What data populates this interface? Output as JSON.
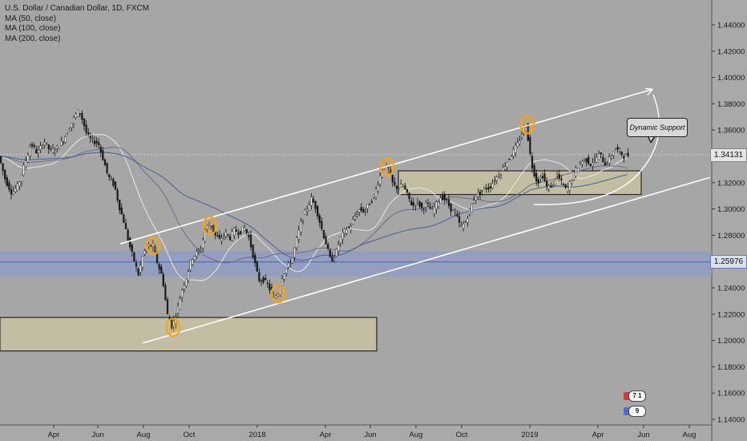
{
  "chart_data": {
    "type": "candlestick",
    "title": "U.S. Dollar / Canadian Dollar, 1D, FXCM",
    "indicators": [
      "MA (50, close)",
      "MA (100, close)",
      "MA (200, close)"
    ],
    "y_ticks": [
      "1.44000",
      "1.42000",
      "1.40000",
      "1.38000",
      "1.36000",
      "1.34000",
      "1.32000",
      "1.30000",
      "1.28000",
      "1.26000",
      "1.24000",
      "1.22000",
      "1.20000",
      "1.18000",
      "1.16000",
      "1.14000"
    ],
    "ylim": [
      1.139,
      1.455
    ],
    "x_ticks": [
      "Apr",
      "Jun",
      "Aug",
      "Oct",
      "2018",
      "Apr",
      "Jun",
      "Aug",
      "Oct",
      "2019",
      "Apr",
      "Jun",
      "Aug"
    ],
    "current_price": "1.34131",
    "horizontal_line_price": "1.25976",
    "price_path": [
      [
        0,
        1.34
      ],
      [
        8,
        1.322
      ],
      [
        16,
        1.312
      ],
      [
        24,
        1.318
      ],
      [
        32,
        1.334
      ],
      [
        40,
        1.35
      ],
      [
        48,
        1.342
      ],
      [
        56,
        1.352
      ],
      [
        64,
        1.344
      ],
      [
        72,
        1.346
      ],
      [
        80,
        1.352
      ],
      [
        88,
        1.362
      ],
      [
        96,
        1.372
      ],
      [
        100,
        1.375
      ],
      [
        104,
        1.368
      ],
      [
        110,
        1.356
      ],
      [
        116,
        1.352
      ],
      [
        124,
        1.35
      ],
      [
        130,
        1.338
      ],
      [
        136,
        1.325
      ],
      [
        144,
        1.318
      ],
      [
        150,
        1.302
      ],
      [
        156,
        1.29
      ],
      [
        162,
        1.274
      ],
      [
        168,
        1.262
      ],
      [
        174,
        1.25
      ],
      [
        180,
        1.266
      ],
      [
        186,
        1.272
      ],
      [
        192,
        1.272
      ],
      [
        198,
        1.258
      ],
      [
        204,
        1.248
      ],
      [
        210,
        1.22
      ],
      [
        216,
        1.21
      ],
      [
        222,
        1.222
      ],
      [
        228,
        1.238
      ],
      [
        234,
        1.248
      ],
      [
        240,
        1.262
      ],
      [
        246,
        1.266
      ],
      [
        252,
        1.27
      ],
      [
        258,
        1.286
      ],
      [
        264,
        1.288
      ],
      [
        270,
        1.28
      ],
      [
        276,
        1.276
      ],
      [
        282,
        1.282
      ],
      [
        288,
        1.278
      ],
      [
        294,
        1.284
      ],
      [
        300,
        1.282
      ],
      [
        306,
        1.286
      ],
      [
        312,
        1.278
      ],
      [
        318,
        1.262
      ],
      [
        324,
        1.246
      ],
      [
        330,
        1.246
      ],
      [
        336,
        1.242
      ],
      [
        342,
        1.232
      ],
      [
        348,
        1.236
      ],
      [
        354,
        1.25
      ],
      [
        360,
        1.256
      ],
      [
        366,
        1.262
      ],
      [
        372,
        1.278
      ],
      [
        378,
        1.292
      ],
      [
        384,
        1.3
      ],
      [
        390,
        1.308
      ],
      [
        396,
        1.3
      ],
      [
        402,
        1.286
      ],
      [
        408,
        1.274
      ],
      [
        414,
        1.26
      ],
      [
        420,
        1.266
      ],
      [
        426,
        1.278
      ],
      [
        432,
        1.284
      ],
      [
        438,
        1.286
      ],
      [
        444,
        1.294
      ],
      [
        450,
        1.3
      ],
      [
        456,
        1.298
      ],
      [
        462,
        1.304
      ],
      [
        468,
        1.31
      ],
      [
        474,
        1.322
      ],
      [
        480,
        1.334
      ],
      [
        486,
        1.33
      ],
      [
        492,
        1.318
      ],
      [
        498,
        1.316
      ],
      [
        504,
        1.318
      ],
      [
        510,
        1.31
      ],
      [
        516,
        1.302
      ],
      [
        522,
        1.306
      ],
      [
        528,
        1.3
      ],
      [
        534,
        1.304
      ],
      [
        540,
        1.298
      ],
      [
        546,
        1.304
      ],
      [
        552,
        1.31
      ],
      [
        558,
        1.306
      ],
      [
        564,
        1.3
      ],
      [
        570,
        1.296
      ],
      [
        576,
        1.286
      ],
      [
        582,
        1.29
      ],
      [
        588,
        1.3
      ],
      [
        594,
        1.31
      ],
      [
        600,
        1.312
      ],
      [
        606,
        1.316
      ],
      [
        612,
        1.316
      ],
      [
        618,
        1.322
      ],
      [
        624,
        1.326
      ],
      [
        630,
        1.332
      ],
      [
        636,
        1.338
      ],
      [
        642,
        1.344
      ],
      [
        648,
        1.35
      ],
      [
        654,
        1.36
      ],
      [
        658,
        1.364
      ],
      [
        662,
        1.344
      ],
      [
        666,
        1.33
      ],
      [
        672,
        1.32
      ],
      [
        678,
        1.326
      ],
      [
        684,
        1.316
      ],
      [
        690,
        1.318
      ],
      [
        696,
        1.326
      ],
      [
        702,
        1.32
      ],
      [
        708,
        1.314
      ],
      [
        714,
        1.322
      ],
      [
        720,
        1.33
      ],
      [
        726,
        1.336
      ],
      [
        732,
        1.338
      ],
      [
        738,
        1.334
      ],
      [
        744,
        1.338
      ],
      [
        750,
        1.342
      ],
      [
        756,
        1.334
      ],
      [
        762,
        1.338
      ],
      [
        768,
        1.346
      ],
      [
        774,
        1.344
      ],
      [
        780,
        1.34
      ],
      [
        784,
        1.341
      ]
    ],
    "zones": [
      {
        "from_x": 0,
        "to_x": 470,
        "from_y": 1.2175,
        "to_y": 1.192
      },
      {
        "from_x": 497,
        "to_x": 800,
        "from_y": 1.329,
        "to_y": 1.311
      }
    ],
    "channel_lines": [
      {
        "x1": 150,
        "y1": 1.2735,
        "x2": 814,
        "y2": 1.391
      },
      {
        "x1": 178,
        "y1": 1.198,
        "x2": 886,
        "y2": 1.324
      }
    ],
    "highlight_points_x": [
      191,
      216,
      262,
      347,
      483,
      658
    ],
    "annotation": "Dynamic Support",
    "events": [
      {
        "count": "7 1"
      },
      {
        "count": "9"
      }
    ],
    "colors": {
      "background": "#a6a6a6",
      "up_candle": "#ffffff",
      "down_candle": "#1a1a1a",
      "channel": "#ffffff",
      "zone_fill": "#c9c3a3",
      "highlight": "#f2a51d",
      "support_band": "#8e9bc6",
      "price_line": "#4a6fd0"
    }
  }
}
